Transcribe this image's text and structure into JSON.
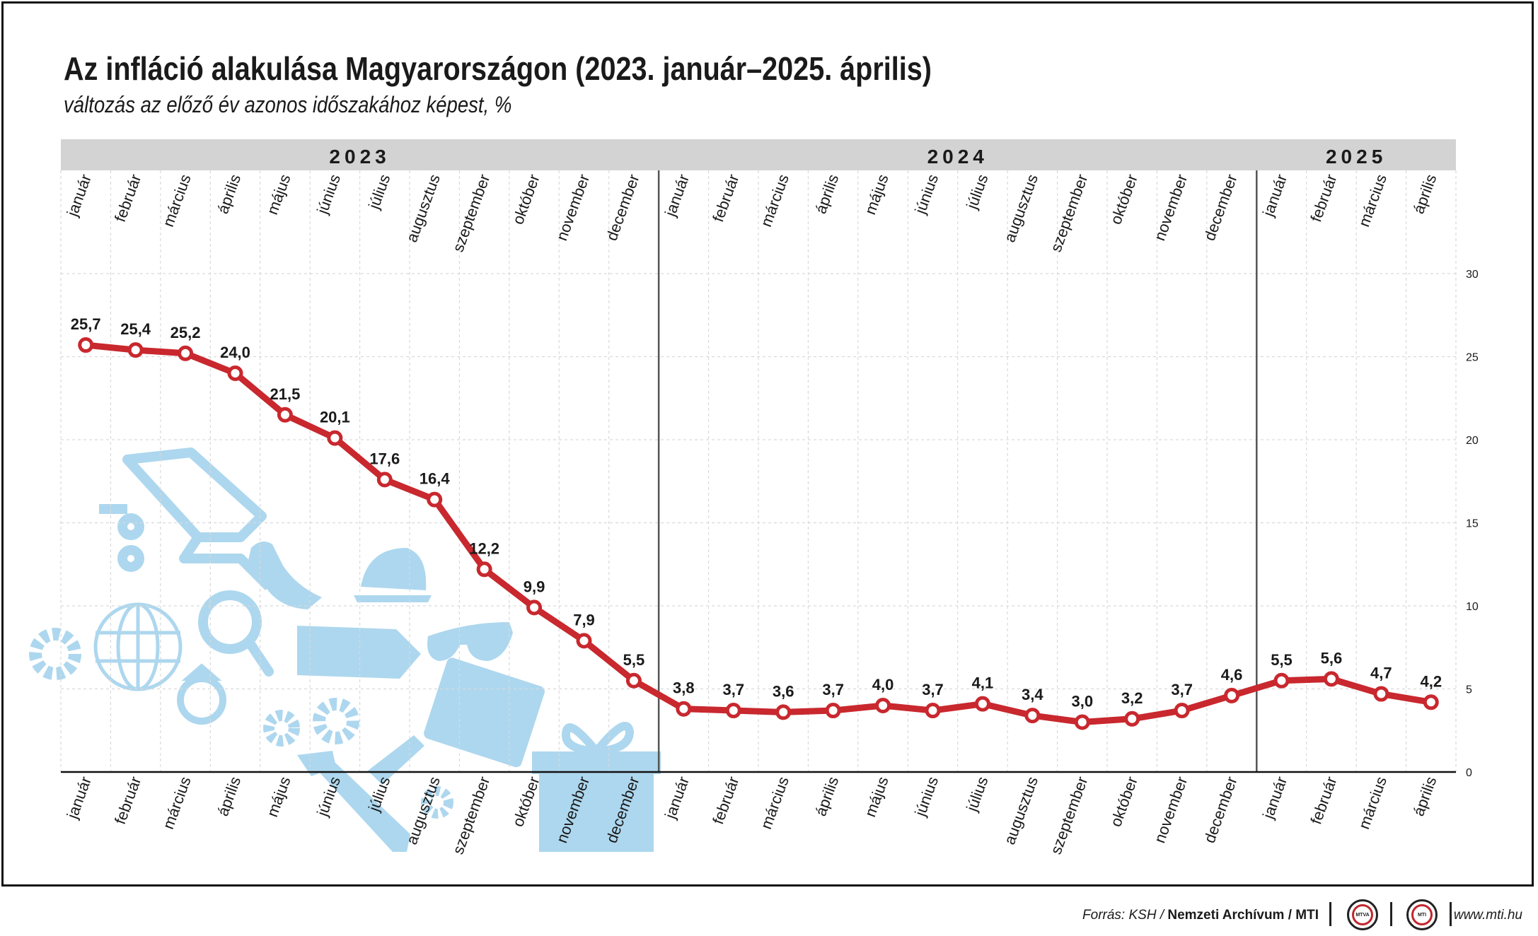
{
  "header": {
    "title": "Az infláció alakulása Magyarországon (2023. január–2025. április)",
    "subtitle": "változás az előző év azonos időszakához képest, %"
  },
  "chart_data": {
    "type": "line",
    "years": [
      {
        "label": "2023",
        "months": 12
      },
      {
        "label": "2024",
        "months": 12
      },
      {
        "label": "2025",
        "months": 4
      }
    ],
    "categories": [
      "január",
      "február",
      "március",
      "április",
      "május",
      "június",
      "július",
      "augusztus",
      "szeptember",
      "október",
      "november",
      "december",
      "január",
      "február",
      "március",
      "április",
      "május",
      "június",
      "július",
      "augusztus",
      "szeptember",
      "október",
      "november",
      "december",
      "január",
      "február",
      "március",
      "április"
    ],
    "values": [
      25.7,
      25.4,
      25.2,
      24.0,
      21.5,
      20.1,
      17.6,
      16.4,
      12.2,
      9.9,
      7.9,
      5.5,
      3.8,
      3.7,
      3.6,
      3.7,
      4.0,
      3.7,
      4.1,
      3.4,
      3.0,
      3.2,
      3.7,
      4.6,
      5.5,
      5.6,
      4.7,
      4.2
    ],
    "value_labels": [
      "25,7",
      "25,4",
      "25,2",
      "24,0",
      "21,5",
      "20,1",
      "17,6",
      "16,4",
      "12,2",
      "9,9",
      "7,9",
      "5,5",
      "3,8",
      "3,7",
      "3,6",
      "3,7",
      "4,0",
      "3,7",
      "4,1",
      "3,4",
      "3,0",
      "3,2",
      "3,7",
      "4,6",
      "5,5",
      "5,6",
      "4,7",
      "4,2"
    ],
    "y_ticks": [
      0,
      5,
      10,
      15,
      20,
      25,
      30
    ],
    "ylim": [
      0,
      30
    ],
    "grid": true,
    "line_color": "#c8282e",
    "marker_fill": "#ffffff",
    "year_band_color": "#d3d3d3",
    "decoration_color": "#a9d5ee"
  },
  "footer": {
    "source_prefix": "Forrás: KSH / ",
    "source_bold": "Nemzeti Archívum / MTI",
    "logo1": "MTVA",
    "logo2": "MTI",
    "url": "www.mti.hu"
  }
}
